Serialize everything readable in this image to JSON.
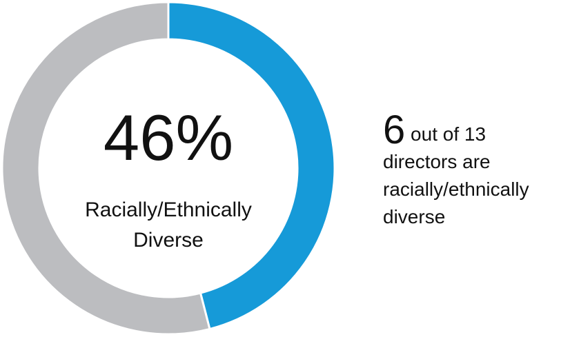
{
  "chart_data": {
    "type": "donut",
    "categories": [
      "Racially/Ethnically Diverse",
      null
    ],
    "values": [
      46,
      54
    ],
    "value_labels": [
      "46%",
      null
    ],
    "colors": [
      "#169ad8",
      "#bcbdc0"
    ],
    "annotation": {
      "count": "6",
      "text": "out of 13 directors are racially/ethnically diverse"
    }
  }
}
